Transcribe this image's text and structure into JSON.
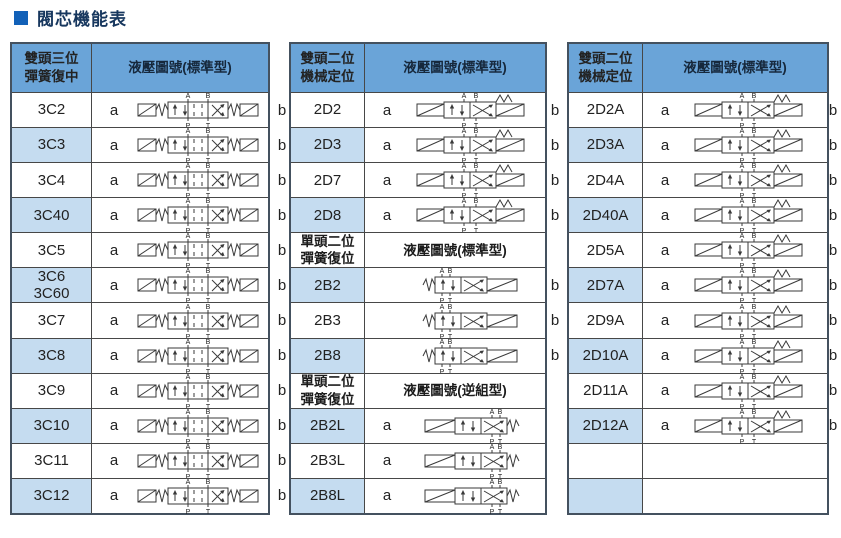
{
  "title": "閥芯機能表",
  "colors": {
    "header_bg": "#6aa4d8",
    "row_alt_bg": "#c5dcf0",
    "border": "#474747",
    "title_color": "#17375e",
    "bullet_color": "#1261b8"
  },
  "ports": {
    "a": "A",
    "b": "B",
    "p": "P",
    "t": "T"
  },
  "tables": [
    {
      "name": "double-head-3pos-spring-centered",
      "blocks": [
        {
          "type": "header",
          "col1": "雙頭三位\n彈簧復中",
          "col2": "液壓圖號(標準型)"
        },
        {
          "type": "row",
          "code": "3C2",
          "shaded": false,
          "a": "a",
          "b": "b",
          "symbol": "3c"
        },
        {
          "type": "row",
          "code": "3C3",
          "shaded": true,
          "a": "a",
          "b": "b",
          "symbol": "3c"
        },
        {
          "type": "row",
          "code": "3C4",
          "shaded": false,
          "a": "a",
          "b": "b",
          "symbol": "3c"
        },
        {
          "type": "row",
          "code": "3C40",
          "shaded": true,
          "a": "a",
          "b": "b",
          "symbol": "3c"
        },
        {
          "type": "row",
          "code": "3C5",
          "shaded": false,
          "a": "a",
          "b": "b",
          "symbol": "3c"
        },
        {
          "type": "row",
          "code": "3C6\n3C60",
          "shaded": true,
          "a": "a",
          "b": "b",
          "symbol": "3c"
        },
        {
          "type": "row",
          "code": "3C7",
          "shaded": false,
          "a": "a",
          "b": "b",
          "symbol": "3c"
        },
        {
          "type": "row",
          "code": "3C8",
          "shaded": true,
          "a": "a",
          "b": "b",
          "symbol": "3c"
        },
        {
          "type": "row",
          "code": "3C9",
          "shaded": false,
          "a": "a",
          "b": "b",
          "symbol": "3c"
        },
        {
          "type": "row",
          "code": "3C10",
          "shaded": true,
          "a": "a",
          "b": "b",
          "symbol": "3c"
        },
        {
          "type": "row",
          "code": "3C11",
          "shaded": false,
          "a": "a",
          "b": "b",
          "symbol": "3c"
        },
        {
          "type": "row",
          "code": "3C12",
          "shaded": true,
          "a": "a",
          "b": "b",
          "symbol": "3c"
        }
      ]
    },
    {
      "name": "double-head-2pos-detent-and-single-head",
      "blocks": [
        {
          "type": "header",
          "col1": "雙頭二位\n機械定位",
          "col2": "液壓圖號(標準型)"
        },
        {
          "type": "row",
          "code": "2D2",
          "shaded": false,
          "a": "a",
          "b": "b",
          "symbol": "2d"
        },
        {
          "type": "row",
          "code": "2D3",
          "shaded": true,
          "a": "a",
          "b": "b",
          "symbol": "2d"
        },
        {
          "type": "row",
          "code": "2D7",
          "shaded": false,
          "a": "a",
          "b": "b",
          "symbol": "2d"
        },
        {
          "type": "row",
          "code": "2D8",
          "shaded": true,
          "a": "a",
          "b": "b",
          "symbol": "2d"
        },
        {
          "type": "subheader",
          "col1": "單頭二位\n彈簧復位",
          "col2": "液壓圖號(標準型)"
        },
        {
          "type": "row",
          "code": "2B2",
          "shaded": true,
          "a": "",
          "b": "b",
          "symbol": "2b"
        },
        {
          "type": "row",
          "code": "2B3",
          "shaded": false,
          "a": "",
          "b": "b",
          "symbol": "2b"
        },
        {
          "type": "row",
          "code": "2B8",
          "shaded": true,
          "a": "",
          "b": "b",
          "symbol": "2b"
        },
        {
          "type": "subheader",
          "col1": "單頭二位\n彈簧復位",
          "col2": "液壓圖號(逆組型)"
        },
        {
          "type": "row",
          "code": "2B2L",
          "shaded": true,
          "a": "a",
          "b": "",
          "symbol": "2bl"
        },
        {
          "type": "row",
          "code": "2B3L",
          "shaded": false,
          "a": "a",
          "b": "",
          "symbol": "2bl"
        },
        {
          "type": "row",
          "code": "2B8L",
          "shaded": true,
          "a": "a",
          "b": "",
          "symbol": "2bl"
        }
      ]
    },
    {
      "name": "double-head-2pos-detent-a-series",
      "blocks": [
        {
          "type": "header",
          "col1": "雙頭二位\n機械定位",
          "col2": "液壓圖號(標準型)"
        },
        {
          "type": "row",
          "code": "2D2A",
          "shaded": false,
          "a": "a",
          "b": "b",
          "symbol": "2d"
        },
        {
          "type": "row",
          "code": "2D3A",
          "shaded": true,
          "a": "a",
          "b": "b",
          "symbol": "2d"
        },
        {
          "type": "row",
          "code": "2D4A",
          "shaded": false,
          "a": "a",
          "b": "b",
          "symbol": "2d"
        },
        {
          "type": "row",
          "code": "2D40A",
          "shaded": true,
          "a": "a",
          "b": "b",
          "symbol": "2d"
        },
        {
          "type": "row",
          "code": "2D5A",
          "shaded": false,
          "a": "a",
          "b": "b",
          "symbol": "2d"
        },
        {
          "type": "row",
          "code": "2D7A",
          "shaded": true,
          "a": "a",
          "b": "b",
          "symbol": "2d"
        },
        {
          "type": "row",
          "code": "2D9A",
          "shaded": false,
          "a": "a",
          "b": "b",
          "symbol": "2d"
        },
        {
          "type": "row",
          "code": "2D10A",
          "shaded": true,
          "a": "a",
          "b": "b",
          "symbol": "2d"
        },
        {
          "type": "row",
          "code": "2D11A",
          "shaded": false,
          "a": "a",
          "b": "b",
          "symbol": "2d"
        },
        {
          "type": "row",
          "code": "2D12A",
          "shaded": true,
          "a": "a",
          "b": "b",
          "symbol": "2d"
        },
        {
          "type": "empty",
          "shaded": false
        },
        {
          "type": "empty",
          "shaded": true
        }
      ]
    }
  ]
}
